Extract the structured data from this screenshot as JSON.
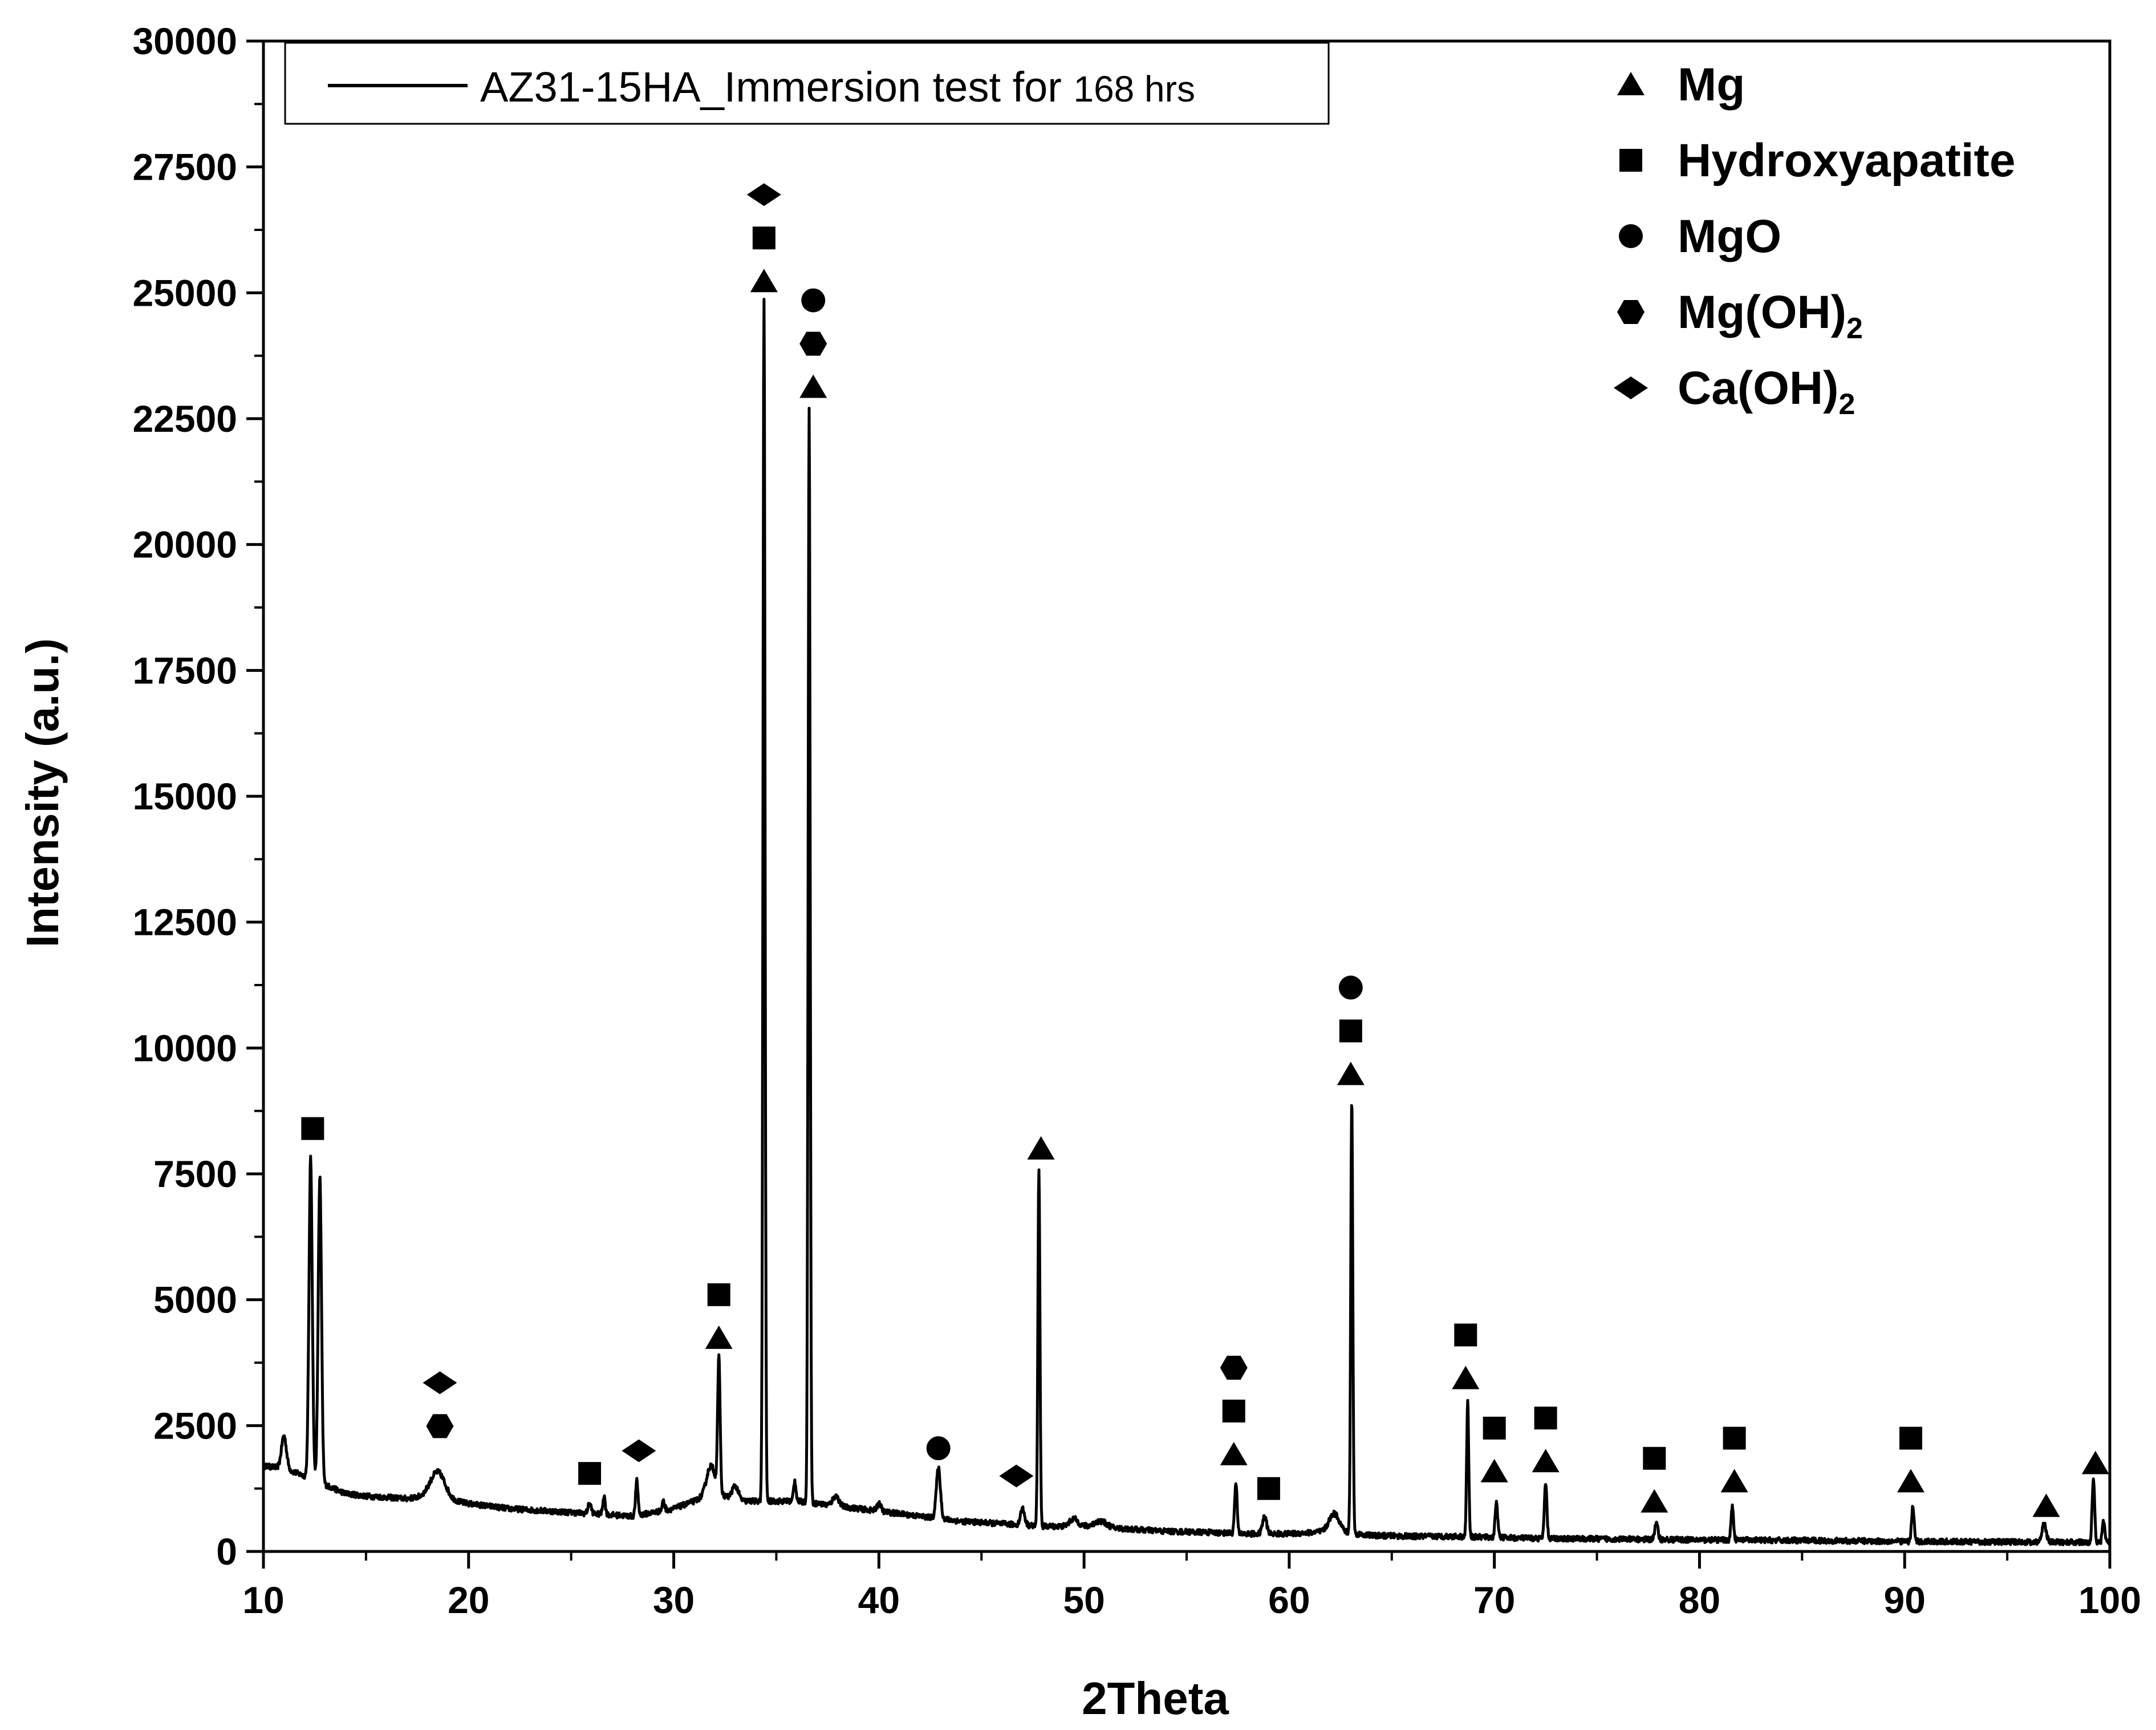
{
  "chart_data": {
    "type": "line",
    "title": "",
    "xlabel": "2Theta",
    "ylabel": "Intensity (a.u.)",
    "xlim": [
      10,
      100
    ],
    "ylim": [
      0,
      30000
    ],
    "x_ticks": [
      10,
      20,
      30,
      40,
      50,
      60,
      70,
      80,
      90,
      100
    ],
    "y_ticks": [
      0,
      2500,
      5000,
      7500,
      10000,
      12500,
      15000,
      17500,
      20000,
      22500,
      25000,
      27500,
      30000
    ],
    "series": [
      {
        "name": "AZ31-15HA_Immersion test for 168 hrs",
        "legend_main": "AZ31-15HA_Immersion test for ",
        "legend_suffix": "168 hrs",
        "color": "#000000",
        "baseline": [
          [
            10,
            1700
          ],
          [
            11,
            1650
          ],
          [
            12,
            1500
          ],
          [
            14,
            1150
          ],
          [
            15,
            1100
          ],
          [
            17,
            1050
          ],
          [
            18,
            1100
          ],
          [
            20,
            950
          ],
          [
            22,
            850
          ],
          [
            24,
            800
          ],
          [
            26,
            750
          ],
          [
            28,
            700
          ],
          [
            30,
            850
          ],
          [
            31,
            1000
          ],
          [
            32,
            1200
          ],
          [
            33,
            1000
          ],
          [
            34,
            1000
          ],
          [
            36,
            1000
          ],
          [
            38,
            900
          ],
          [
            40,
            800
          ],
          [
            42,
            700
          ],
          [
            44,
            600
          ],
          [
            46,
            550
          ],
          [
            48,
            500
          ],
          [
            50,
            500
          ],
          [
            52,
            450
          ],
          [
            54,
            400
          ],
          [
            56,
            380
          ],
          [
            58,
            350
          ],
          [
            60,
            350
          ],
          [
            62,
            400
          ],
          [
            64,
            320
          ],
          [
            66,
            300
          ],
          [
            68,
            300
          ],
          [
            70,
            280
          ],
          [
            72,
            260
          ],
          [
            75,
            250
          ],
          [
            80,
            230
          ],
          [
            85,
            220
          ],
          [
            90,
            200
          ],
          [
            95,
            190
          ],
          [
            100,
            180
          ]
        ],
        "peaks": [
          [
            11.0,
            2300,
            0.12
          ],
          [
            12.3,
            7800,
            0.08
          ],
          [
            12.75,
            7450,
            0.08
          ],
          [
            18.5,
            1580,
            0.35
          ],
          [
            20.8,
            850,
            0.06
          ],
          [
            23.0,
            820,
            0.06
          ],
          [
            25.9,
            950,
            0.08
          ],
          [
            26.6,
            1100,
            0.06
          ],
          [
            28.2,
            1400,
            0.06
          ],
          [
            29.5,
            1000,
            0.06
          ],
          [
            31.8,
            1700,
            0.2
          ],
          [
            32.2,
            3800,
            0.06
          ],
          [
            33.0,
            1300,
            0.15
          ],
          [
            34.4,
            24900,
            0.05
          ],
          [
            35.9,
            1400,
            0.06
          ],
          [
            36.6,
            22700,
            0.05
          ],
          [
            37.9,
            1100,
            0.15
          ],
          [
            40.0,
            950,
            0.1
          ],
          [
            42.9,
            1650,
            0.1
          ],
          [
            47.0,
            850,
            0.1
          ],
          [
            47.8,
            7600,
            0.05
          ],
          [
            49.5,
            650,
            0.2
          ],
          [
            50.8,
            600,
            0.3
          ],
          [
            57.4,
            1350,
            0.06
          ],
          [
            58.8,
            700,
            0.1
          ],
          [
            62.2,
            750,
            0.25
          ],
          [
            63.05,
            9000,
            0.05
          ],
          [
            68.7,
            3000,
            0.05
          ],
          [
            70.1,
            1000,
            0.06
          ],
          [
            72.5,
            1350,
            0.06
          ],
          [
            77.9,
            550,
            0.08
          ],
          [
            81.6,
            900,
            0.06
          ],
          [
            90.4,
            900,
            0.06
          ],
          [
            96.8,
            550,
            0.1
          ],
          [
            99.2,
            1450,
            0.06
          ],
          [
            99.7,
            600,
            0.06
          ]
        ]
      }
    ],
    "phase_legend": [
      {
        "symbol": "triangle",
        "label": "Mg",
        "sub": ""
      },
      {
        "symbol": "square",
        "label": "Hydroxyapatite",
        "sub": ""
      },
      {
        "symbol": "circle",
        "label": "MgO",
        "sub": ""
      },
      {
        "symbol": "hexagon",
        "label": "Mg(OH)",
        "sub": "2"
      },
      {
        "symbol": "diamond",
        "label": "Ca(OH)",
        "sub": "2"
      }
    ],
    "annotations": [
      {
        "x": 12.4,
        "stack": [
          "square"
        ],
        "y_top": 8400
      },
      {
        "x": 18.6,
        "stack": [
          "hexagon",
          "diamond"
        ],
        "y_top": 3350
      },
      {
        "x": 25.9,
        "stack": [
          "square"
        ],
        "y_top": 1550
      },
      {
        "x": 28.3,
        "stack": [
          "diamond"
        ],
        "y_top": 2000
      },
      {
        "x": 32.2,
        "stack": [
          "triangle",
          "square"
        ],
        "y_top": 5100
      },
      {
        "x": 34.4,
        "stack": [
          "triangle",
          "square",
          "diamond"
        ],
        "y_top": 26950
      },
      {
        "x": 36.8,
        "stack": [
          "triangle",
          "hexagon",
          "circle"
        ],
        "y_top": 24850
      },
      {
        "x": 42.9,
        "stack": [
          "circle"
        ],
        "y_top": 2050
      },
      {
        "x": 46.7,
        "stack": [
          "diamond"
        ],
        "y_top": 1500
      },
      {
        "x": 47.9,
        "stack": [
          "triangle"
        ],
        "y_top": 8000
      },
      {
        "x": 57.3,
        "stack": [
          "triangle",
          "square",
          "hexagon"
        ],
        "y_top": 3650
      },
      {
        "x": 59.0,
        "stack": [
          "square"
        ],
        "y_top": 1250
      },
      {
        "x": 63.0,
        "stack": [
          "triangle",
          "square",
          "circle"
        ],
        "y_top": 11200
      },
      {
        "x": 68.6,
        "stack": [
          "triangle",
          "square"
        ],
        "y_top": 4300
      },
      {
        "x": 70.0,
        "stack": [
          "triangle",
          "square"
        ],
        "y_top": 2450
      },
      {
        "x": 72.5,
        "stack": [
          "triangle",
          "square"
        ],
        "y_top": 2650
      },
      {
        "x": 77.8,
        "stack": [
          "triangle",
          "square"
        ],
        "y_top": 1850
      },
      {
        "x": 81.7,
        "stack": [
          "triangle",
          "square"
        ],
        "y_top": 2250
      },
      {
        "x": 90.3,
        "stack": [
          "triangle",
          "square"
        ],
        "y_top": 2250
      },
      {
        "x": 96.9,
        "stack": [
          "triangle"
        ],
        "y_top": 900
      },
      {
        "x": 99.3,
        "stack": [
          "triangle"
        ],
        "y_top": 1750
      }
    ]
  }
}
